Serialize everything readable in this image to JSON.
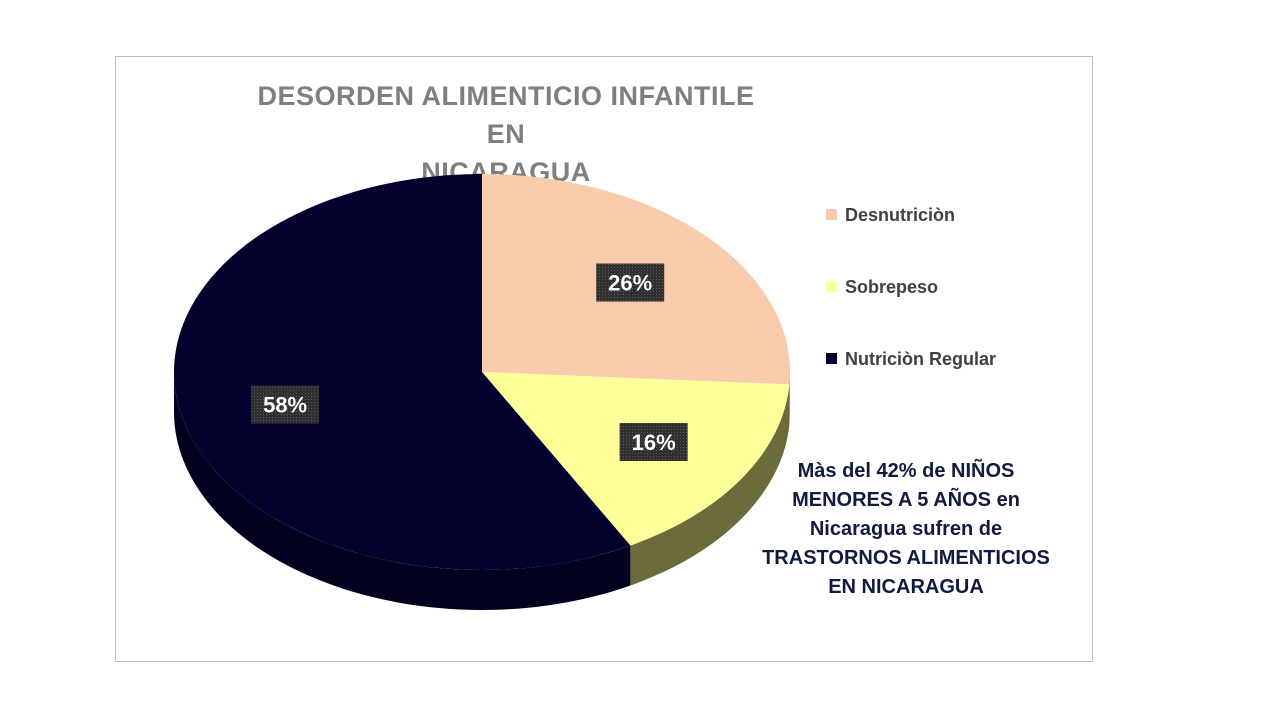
{
  "chart_data": {
    "type": "pie",
    "title": "DESORDEN ALIMENTICIO INFANTILE EN NICARAGUA",
    "title_lines": [
      "DESORDEN ALIMENTICIO INFANTILE EN",
      "NICARAGUA"
    ],
    "categories": [
      "Desnutriciòn",
      "Sobrepeso",
      "Nutriciòn Regular"
    ],
    "values": [
      26,
      16,
      58
    ],
    "data_labels": [
      "26%",
      "16%",
      "58%"
    ],
    "unit": "%",
    "colors": [
      "#f8cbad",
      "#ffff99",
      "#03022f"
    ],
    "side_colors": [
      "#b7957d",
      "#6b6b3c",
      "#02011f"
    ],
    "style": "3d",
    "legend_position": "right"
  },
  "annotation": {
    "lines": [
      "Màs del 42% de NIÑOS",
      "MENORES A 5 AÑOS en",
      "Nicaragua sufren de",
      "TRASTORNOS ALIMENTICIOS",
      "EN NICARAGUA"
    ]
  }
}
